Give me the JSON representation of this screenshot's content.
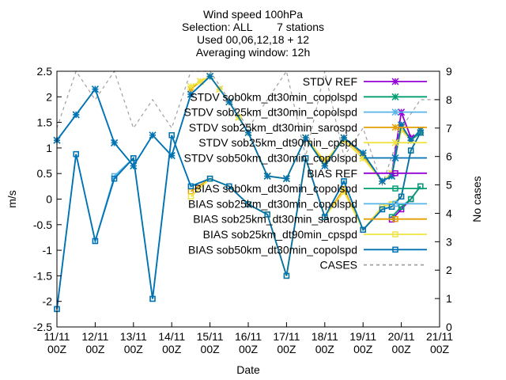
{
  "chart_data": {
    "type": "line",
    "title_lines": [
      "Wind speed 100hPa",
      "Selection: ALL        7 stations",
      "Used 00,06,12,18 + 12",
      "Averaging window: 12h"
    ],
    "xlabel": "Date",
    "ylabel": "m/s",
    "y2label": "No cases",
    "x_ticks": [
      "11/11 00Z",
      "12/11 00Z",
      "13/11 00Z",
      "14/11 00Z",
      "15/11 00Z",
      "16/11 00Z",
      "17/11 00Z",
      "18/11 00Z",
      "19/11 00Z",
      "20/11 00Z",
      "21/11 00Z"
    ],
    "x_range_days": [
      0,
      10
    ],
    "ylim": [
      -2.5,
      2.5
    ],
    "y_ticks": [
      "-2.5",
      "-2",
      "-1.5",
      "-1",
      "-0.5",
      "0",
      "0.5",
      "1",
      "1.5",
      "2",
      "2.5"
    ],
    "y2lim": [
      0,
      9
    ],
    "y2_ticks": [
      "0",
      "1",
      "2",
      "3",
      "4",
      "5",
      "6",
      "7",
      "8",
      "9"
    ],
    "legend_position": "top-right",
    "series": [
      {
        "name": "STDV REF",
        "axis": "y",
        "color": "#9400d3",
        "marker": "x",
        "x": [
          8.75,
          9,
          9.25,
          9.5
        ],
        "y": [
          0.5,
          1.7,
          1.2,
          1.3
        ]
      },
      {
        "name": "STDV sob0km_dt30min_copolspd",
        "axis": "y",
        "color": "#009e73",
        "marker": "x",
        "x": [
          8.75,
          9,
          9.25,
          9.5
        ],
        "y": [
          0.45,
          1.4,
          1.15,
          1.3
        ]
      },
      {
        "name": "STDV sob25km_dt30min_copolspd",
        "axis": "y",
        "color": "#56b4e9",
        "marker": "x",
        "x": [
          0,
          0.5,
          1,
          1.5,
          2,
          2.5,
          3,
          3.5,
          4,
          4.5,
          5,
          5.5,
          6,
          6.5,
          7,
          7.5,
          8,
          8.5,
          8.75,
          9,
          9.25,
          9.5
        ],
        "y": [
          1.15,
          1.65,
          2.15,
          1.1,
          0.65,
          1.25,
          0.85,
          2.05,
          2.4,
          1.9,
          1.3,
          0.45,
          0.4,
          1.2,
          0.65,
          1.2,
          0.9,
          0.35,
          0.5,
          1.45,
          1.15,
          1.35
        ]
      },
      {
        "name": "STDV sob25km_dt30min_sarospd",
        "axis": "y",
        "color": "#e69f00",
        "marker": "x",
        "x": [
          3.5,
          3.75,
          4,
          4.25,
          4.5,
          4.75,
          5,
          5.5,
          6,
          6.5,
          7,
          7.5,
          8,
          8.5,
          8.75,
          9,
          9.25,
          9.5
        ],
        "y": [
          2.15,
          2.3,
          2.4,
          2.15,
          1.9,
          1.6,
          1.3,
          0.45,
          0.4,
          1.2,
          0.7,
          1.2,
          0.85,
          0.35,
          0.5,
          1.4,
          1.15,
          1.35
        ]
      },
      {
        "name": "STDV sob25km_dt90min_cpspd",
        "axis": "y",
        "color": "#f0e442",
        "marker": "x",
        "x": [
          3.5,
          3.75,
          4,
          4.25,
          4.5,
          4.75,
          5,
          5.5,
          6,
          6.5,
          7,
          7.5,
          8,
          8.5,
          8.75,
          9,
          9.25,
          9.5
        ],
        "y": [
          2.2,
          2.3,
          2.4,
          2.15,
          1.9,
          1.6,
          1.3,
          0.45,
          0.4,
          1.2,
          0.75,
          1.15,
          0.8,
          0.35,
          0.5,
          1.35,
          1.15,
          1.35
        ]
      },
      {
        "name": "STDV sob50km_dt30min_copolspd",
        "axis": "y",
        "color": "#0072b2",
        "marker": "x",
        "x": [
          0,
          0.5,
          1,
          1.5,
          2,
          2.5,
          3,
          3.5,
          4,
          4.5,
          5,
          5.5,
          6,
          6.5,
          7,
          7.5,
          8,
          8.5,
          8.75,
          9,
          9.25,
          9.5
        ],
        "y": [
          1.15,
          1.65,
          2.15,
          1.1,
          0.65,
          1.25,
          0.85,
          2.05,
          2.4,
          1.9,
          1.3,
          0.45,
          0.4,
          1.2,
          0.65,
          1.2,
          0.9,
          0.35,
          0.45,
          1.45,
          1.15,
          1.35
        ]
      },
      {
        "name": "BIAS REF",
        "axis": "y",
        "color": "#9400d3",
        "marker": "box",
        "x": [
          8.75,
          9,
          9.25,
          9.5
        ],
        "y": [
          -0.4,
          -0.2,
          0.0,
          0.25
        ]
      },
      {
        "name": "BIAS sob0km_dt30min_copolspd",
        "axis": "y",
        "color": "#009e73",
        "marker": "box",
        "x": [
          8.75,
          9,
          9.25,
          9.5
        ],
        "y": [
          -0.35,
          -0.15,
          0.0,
          0.25
        ]
      },
      {
        "name": "BIAS sob25km_dt30min_copolspd",
        "axis": "y",
        "color": "#56b4e9",
        "marker": "box",
        "x": [
          0,
          0.5,
          1,
          1.5,
          2,
          2.5,
          3,
          3.5,
          4,
          4.5,
          5,
          5.5,
          6,
          6.5,
          7,
          7.5,
          8,
          8.5,
          8.75,
          9,
          9.25,
          9.5
        ],
        "y": [
          -2.15,
          0.88,
          -0.82,
          0.45,
          0.8,
          -1.95,
          1.25,
          0.25,
          0.4,
          0.25,
          -0.1,
          -0.3,
          -1.5,
          0.8,
          -0.35,
          0.35,
          -0.6,
          -0.2,
          -0.15,
          0.05,
          0.95,
          1.3
        ]
      },
      {
        "name": "BIAS sob25km_dt30min_sarospd",
        "axis": "y",
        "color": "#e69f00",
        "marker": "box",
        "x": [
          3.5,
          4,
          4.5,
          5,
          5.5,
          6,
          6.5,
          7,
          7.5,
          8,
          8.5,
          8.75,
          9,
          9.25,
          9.5
        ],
        "y": [
          0.15,
          0.4,
          0.25,
          -0.1,
          -0.3,
          -1.5,
          0.8,
          -0.35,
          0.2,
          -0.6,
          -0.15,
          -0.1,
          0.05,
          0.95,
          1.3
        ]
      },
      {
        "name": "BIAS sob25km_dt90min_cpspd",
        "axis": "y",
        "color": "#f0e442",
        "marker": "box",
        "x": [
          3.5,
          4,
          4.5,
          5,
          5.5,
          6,
          6.5,
          7,
          7.5,
          8,
          8.5,
          8.75,
          9,
          9.25,
          9.5
        ],
        "y": [
          0.05,
          0.4,
          0.25,
          -0.1,
          -0.3,
          -1.5,
          0.8,
          -0.35,
          0.15,
          -0.6,
          -0.15,
          -0.1,
          0.05,
          0.95,
          1.3
        ]
      },
      {
        "name": "BIAS sob50km_dt30min_copolspd",
        "axis": "y",
        "color": "#0072b2",
        "marker": "box",
        "x": [
          0,
          0.5,
          1,
          1.5,
          2,
          2.5,
          3,
          3.5,
          4,
          4.5,
          5,
          5.5,
          6,
          6.5,
          7,
          7.5,
          8,
          8.5,
          8.75,
          9,
          9.25,
          9.5
        ],
        "y": [
          -2.15,
          0.88,
          -0.82,
          0.4,
          0.8,
          -1.95,
          1.25,
          0.25,
          0.4,
          0.25,
          -0.1,
          -0.3,
          -1.5,
          0.8,
          -0.35,
          0.35,
          -0.6,
          -0.2,
          -0.15,
          0.05,
          0.95,
          1.3
        ]
      },
      {
        "name": "CASES",
        "axis": "y2",
        "color": "#a0a0a0",
        "marker": "none",
        "dashed": true,
        "x": [
          0,
          0.5,
          1,
          1.5,
          2,
          2.5,
          3,
          3.5,
          4,
          4.5,
          5,
          5.5,
          6,
          6.5,
          7,
          7.5,
          8,
          8.5,
          9,
          9.5,
          10
        ],
        "y": [
          7,
          9,
          8,
          9,
          7,
          8,
          7,
          9,
          9,
          8,
          7,
          8,
          9,
          6,
          9,
          6,
          7,
          5,
          7,
          8,
          8
        ]
      }
    ]
  }
}
